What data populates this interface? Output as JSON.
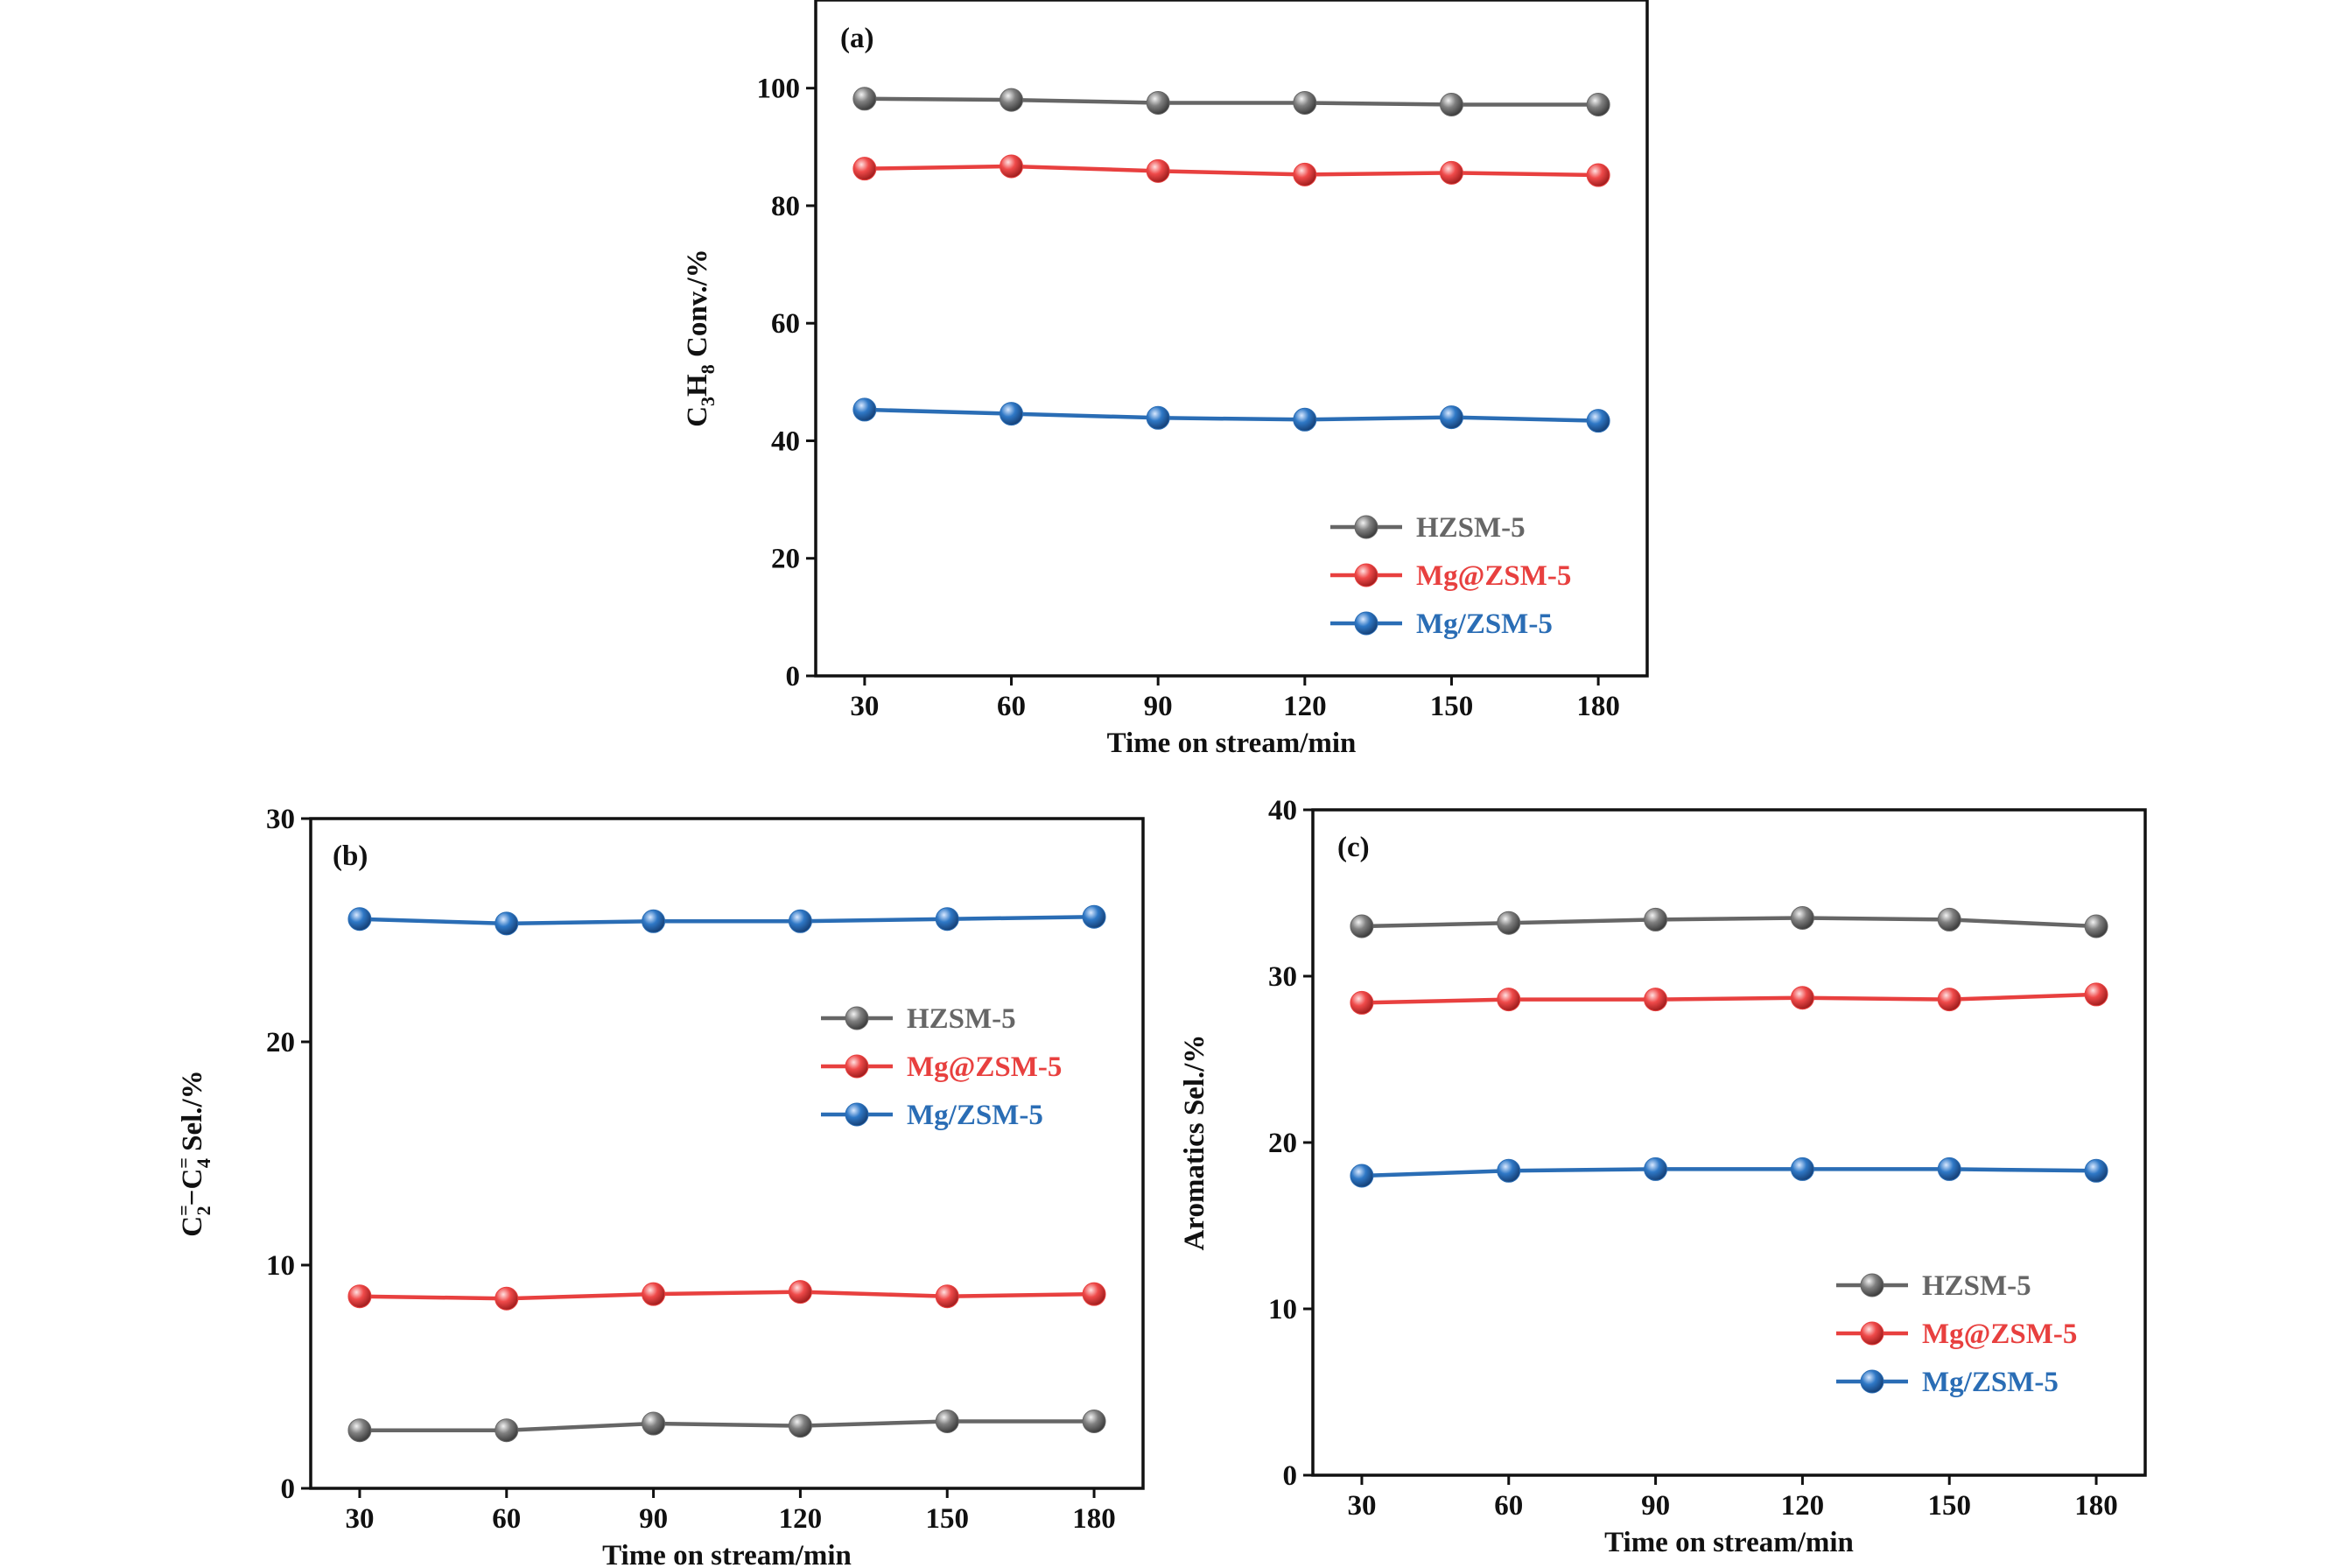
{
  "colors": {
    "HZSM-5": "#666666",
    "Mg@ZSM-5": "#e8403f",
    "Mg/ZSM-5": "#2a6db5"
  },
  "chart_data": [
    {
      "id": "a",
      "type": "line",
      "panel_label": "(a)",
      "xlabel": "Time on stream/min",
      "ylabel": {
        "parts": [
          {
            "t": "C",
            "s": ""
          },
          {
            "t": "3",
            "s": "sub"
          },
          {
            "t": "H",
            "s": ""
          },
          {
            "t": "8",
            "s": "sub"
          },
          {
            "t": " Conv./%",
            "s": ""
          }
        ]
      },
      "x": [
        30,
        60,
        90,
        120,
        150,
        180
      ],
      "xlim": [
        20,
        190
      ],
      "ylim": [
        0,
        115
      ],
      "yticks": [
        0,
        20,
        40,
        60,
        80,
        100
      ],
      "grid": false,
      "legend_position": "bottom-right",
      "series": [
        {
          "name": "HZSM-5",
          "values": [
            98.2,
            98.0,
            97.5,
            97.5,
            97.2,
            97.2
          ]
        },
        {
          "name": "Mg@ZSM-5",
          "values": [
            86.3,
            86.7,
            85.9,
            85.3,
            85.6,
            85.2
          ]
        },
        {
          "name": "Mg/ZSM-5",
          "values": [
            45.3,
            44.6,
            43.9,
            43.6,
            44.0,
            43.4
          ]
        }
      ]
    },
    {
      "id": "b",
      "type": "line",
      "panel_label": "(b)",
      "xlabel": "Time on stream/min",
      "ylabel": {
        "parts": [
          {
            "t": "C",
            "s": ""
          },
          {
            "t": "=",
            "s": "sup"
          },
          {
            "t": "2",
            "s": "subx"
          },
          {
            "t": "−C",
            "s": ""
          },
          {
            "t": "=",
            "s": "sup"
          },
          {
            "t": "4",
            "s": "subx"
          },
          {
            "t": " Sel./%",
            "s": ""
          }
        ]
      },
      "x": [
        30,
        60,
        90,
        120,
        150,
        180
      ],
      "xlim": [
        20,
        190
      ],
      "ylim": [
        0,
        30
      ],
      "yticks": [
        0,
        10,
        20,
        30
      ],
      "grid": false,
      "legend_position": "middle-right",
      "series": [
        {
          "name": "HZSM-5",
          "values": [
            2.6,
            2.6,
            2.9,
            2.8,
            3.0,
            3.0
          ]
        },
        {
          "name": "Mg@ZSM-5",
          "values": [
            8.6,
            8.5,
            8.7,
            8.8,
            8.6,
            8.7
          ]
        },
        {
          "name": "Mg/ZSM-5",
          "values": [
            25.5,
            25.3,
            25.4,
            25.4,
            25.5,
            25.6
          ]
        }
      ]
    },
    {
      "id": "c",
      "type": "line",
      "panel_label": "(c)",
      "xlabel": "Time on stream/min",
      "ylabel": {
        "parts": [
          {
            "t": "Aromatics Sel./%",
            "s": ""
          }
        ]
      },
      "x": [
        30,
        60,
        90,
        120,
        150,
        180
      ],
      "xlim": [
        20,
        190
      ],
      "ylim": [
        0,
        40
      ],
      "yticks": [
        0,
        10,
        20,
        30,
        40
      ],
      "grid": false,
      "legend_position": "bottom-right",
      "series": [
        {
          "name": "HZSM-5",
          "values": [
            33.0,
            33.2,
            33.4,
            33.5,
            33.4,
            33.0
          ]
        },
        {
          "name": "Mg@ZSM-5",
          "values": [
            28.4,
            28.6,
            28.6,
            28.7,
            28.6,
            28.9
          ]
        },
        {
          "name": "Mg/ZSM-5",
          "values": [
            18.0,
            18.3,
            18.4,
            18.4,
            18.4,
            18.3
          ]
        }
      ]
    }
  ]
}
